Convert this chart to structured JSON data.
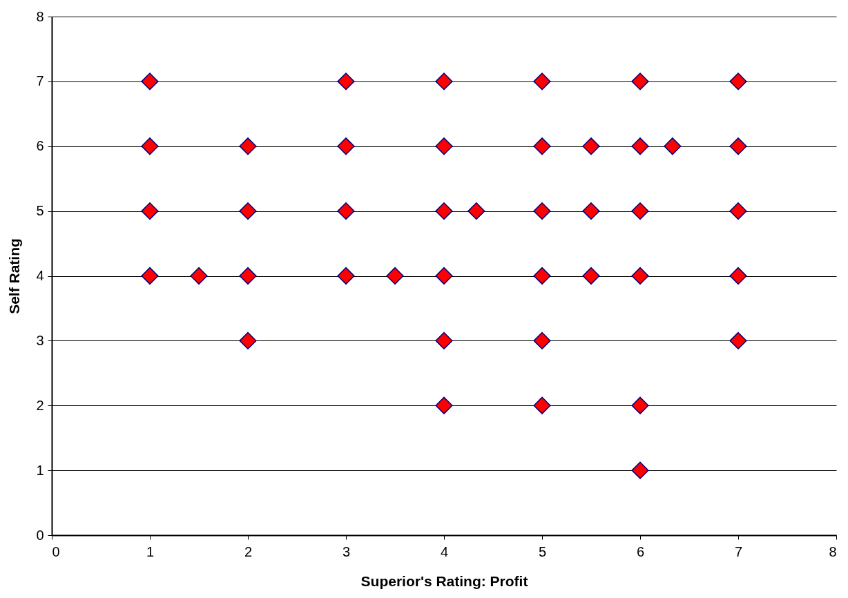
{
  "chart_data": {
    "type": "scatter",
    "xlabel": "Superior's Rating: Profit",
    "ylabel": "Self Rating",
    "x": [
      1,
      3,
      4,
      5,
      6,
      7,
      1,
      2,
      3,
      4,
      5,
      5.5,
      6,
      6.33,
      7,
      1,
      2,
      3,
      4,
      4.33,
      5,
      5.5,
      6,
      7,
      1,
      1.5,
      2,
      3,
      3.5,
      4,
      5,
      5.5,
      6,
      7,
      2,
      4,
      5,
      7,
      4,
      5,
      6,
      6
    ],
    "values": [
      7,
      7,
      7,
      7,
      7,
      7,
      6,
      6,
      6,
      6,
      6,
      6,
      6,
      6,
      6,
      5,
      5,
      5,
      5,
      5,
      5,
      5,
      5,
      5,
      4,
      4,
      4,
      4,
      4,
      4,
      4,
      4,
      4,
      4,
      3,
      3,
      3,
      3,
      2,
      2,
      2,
      1
    ],
    "color": "#ff0000",
    "marker": "diamond",
    "xlim": [
      0,
      8
    ],
    "ylim": [
      0,
      8
    ],
    "xticks": [
      0,
      1,
      2,
      3,
      4,
      5,
      6,
      7,
      8
    ],
    "yticks": [
      0,
      1,
      2,
      3,
      4,
      5,
      6,
      7,
      8
    ],
    "grid": "y"
  }
}
